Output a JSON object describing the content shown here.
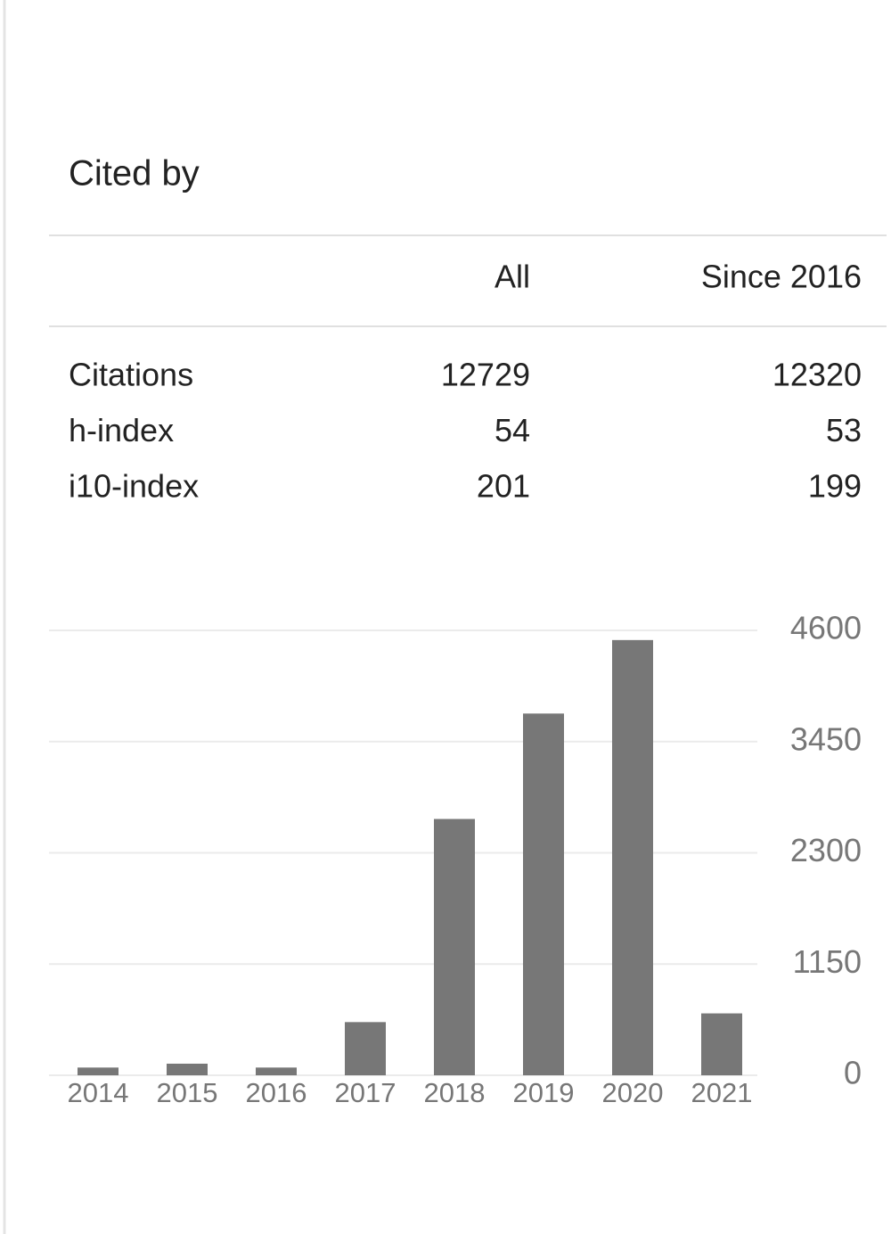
{
  "header": {
    "title": "Cited by"
  },
  "table": {
    "columns": [
      "All",
      "Since 2016"
    ],
    "rows": [
      [
        "Citations",
        12729,
        12320
      ],
      [
        "h-index",
        54,
        53
      ],
      [
        "i10-index",
        201,
        199
      ]
    ]
  },
  "chart_data": {
    "type": "bar",
    "categories": [
      "2014",
      "2015",
      "2016",
      "2017",
      "2018",
      "2019",
      "2020",
      "2021"
    ],
    "values": [
      80,
      120,
      80,
      550,
      2650,
      3740,
      4500,
      640
    ],
    "color": "#777777",
    "ylim": [
      0,
      4600
    ],
    "yticks": [
      0,
      1150,
      2300,
      3450,
      4600
    ],
    "grid": true
  }
}
